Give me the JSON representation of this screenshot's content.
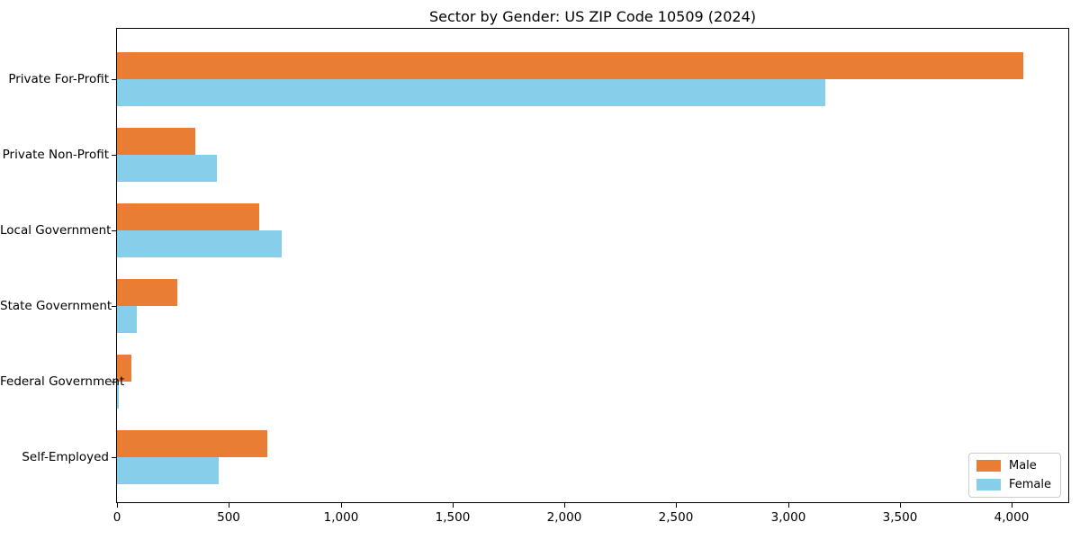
{
  "title": "Sector by Gender: US ZIP Code 10509 (2024)",
  "chart_data": {
    "type": "bar",
    "orientation": "horizontal",
    "title": "Sector by Gender: US ZIP Code 10509 (2024)",
    "categories": [
      "Private For-Profit",
      "Private Non-Profit",
      "Local Government",
      "State Government",
      "Federal Government",
      "Self-Employed"
    ],
    "series": [
      {
        "name": "Male",
        "color": "#E87D33",
        "values": [
          4050,
          350,
          635,
          270,
          65,
          670
        ]
      },
      {
        "name": "Female",
        "color": "#87CEEB",
        "values": [
          3165,
          445,
          735,
          90,
          10,
          455
        ]
      }
    ],
    "xlabel": "",
    "ylabel": "",
    "xlim": [
      0,
      4252
    ],
    "xticks": [
      0,
      500,
      1000,
      1500,
      2000,
      2500,
      3000,
      3500,
      4000
    ],
    "xtick_labels": [
      "0",
      "500",
      "1,000",
      "1,500",
      "2,000",
      "2,500",
      "3,000",
      "3,500",
      "4,000"
    ],
    "grid": false,
    "legend_position": "lower right"
  }
}
